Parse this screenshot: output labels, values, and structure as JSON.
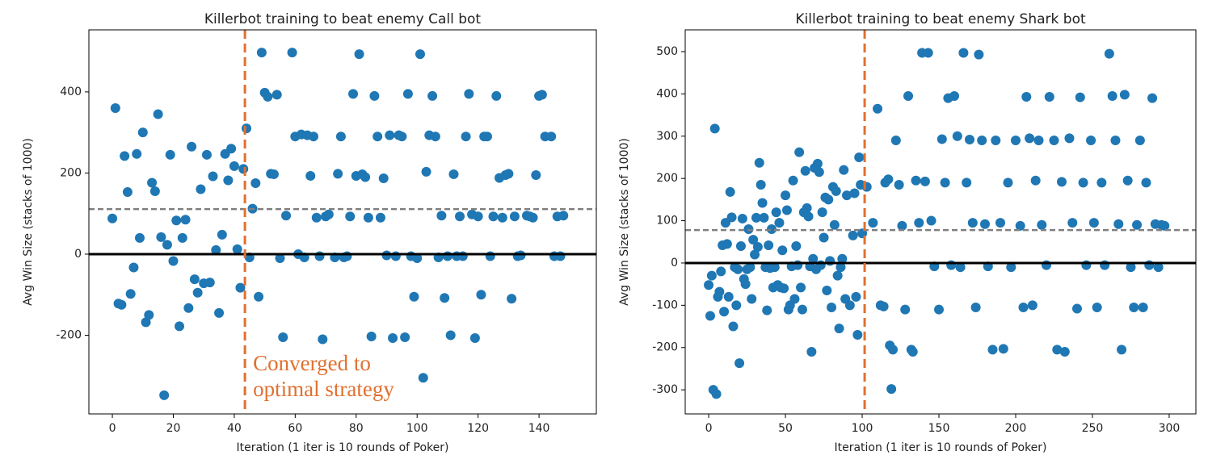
{
  "chart_data": [
    {
      "type": "scatter",
      "title": "Killerbot training to beat enemy Call bot",
      "x_label": "Iteration (1 iter is 10 rounds of Poker)",
      "y_label": "Avg Win Size (stacks of 1000)",
      "color": "#1f77b4",
      "xlim": [
        -7.7,
        158.8
      ],
      "ylim": [
        -394,
        553
      ],
      "xticks": [
        0,
        20,
        40,
        60,
        80,
        100,
        120,
        140
      ],
      "yticks": [
        -200,
        0,
        200,
        400
      ],
      "hlines": [
        {
          "y": 0,
          "color": "#000000",
          "style": "solid"
        },
        {
          "y": 111,
          "color": "#7f7f7f",
          "style": "dashed"
        }
      ],
      "vlines": [
        {
          "x": 43.5,
          "color": "#e07030",
          "style": "dashed"
        }
      ],
      "annotation": "Converged to optimal strategy",
      "annotation_color": "#e07030",
      "x": [
        0,
        1,
        2,
        3,
        4,
        5,
        6,
        7,
        8,
        9,
        10,
        11,
        12,
        13,
        14,
        15,
        16,
        17,
        18,
        19,
        20,
        21,
        22,
        23,
        24,
        25,
        26,
        27,
        28,
        29,
        30,
        31,
        32,
        33,
        34,
        35,
        36,
        37,
        38,
        39,
        40,
        41,
        42,
        43,
        44,
        45,
        46,
        47,
        48,
        49,
        50,
        51,
        52,
        53,
        54,
        55,
        56,
        57,
        59,
        60,
        61,
        62,
        63,
        64,
        65,
        66,
        67,
        68,
        69,
        70,
        71,
        73,
        74,
        75,
        76,
        77,
        78,
        79,
        80,
        81,
        82,
        83,
        84,
        85,
        86,
        87,
        88,
        89,
        90,
        91,
        92,
        93,
        94,
        95,
        96,
        97,
        98,
        99,
        100,
        101,
        102,
        103,
        104,
        105,
        106,
        107,
        108,
        109,
        110,
        111,
        112,
        113,
        114,
        115,
        116,
        117,
        118,
        119,
        120,
        121,
        122,
        123,
        124,
        125,
        126,
        127,
        128,
        129,
        130,
        131,
        132,
        133,
        134,
        136,
        137,
        138,
        139,
        140,
        141,
        142,
        144,
        145,
        146,
        147,
        148
      ],
      "values": [
        88,
        360,
        -122,
        -125,
        242,
        153,
        -98,
        -33,
        247,
        40,
        300,
        -168,
        -150,
        176,
        155,
        345,
        42,
        -348,
        23,
        245,
        -17,
        83,
        -178,
        40,
        85,
        -133,
        265,
        -62,
        -95,
        160,
        -72,
        245,
        -70,
        192,
        10,
        -145,
        48,
        247,
        182,
        260,
        217,
        12,
        -83,
        210,
        310,
        -8,
        112,
        175,
        -105,
        497,
        398,
        388,
        198,
        197,
        393,
        -10,
        -205,
        95,
        497,
        290,
        0,
        295,
        -8,
        293,
        193,
        290,
        90,
        -5,
        -210,
        93,
        98,
        -8,
        198,
        290,
        -8,
        -5,
        93,
        395,
        193,
        493,
        197,
        190,
        90,
        -203,
        390,
        290,
        90,
        187,
        -3,
        293,
        -207,
        -5,
        293,
        290,
        -205,
        395,
        -5,
        -105,
        -10,
        493,
        -305,
        203,
        293,
        390,
        290,
        -8,
        95,
        -108,
        -5,
        -200,
        197,
        -5,
        93,
        -5,
        290,
        395,
        98,
        -207,
        93,
        -100,
        290,
        290,
        -5,
        93,
        390,
        188,
        90,
        195,
        198,
        -110,
        93,
        -5,
        -3,
        95,
        93,
        90,
        195,
        390,
        393,
        290,
        290,
        -5,
        93,
        -5,
        95
      ]
    },
    {
      "type": "scatter",
      "title": "Killerbot training to beat enemy Shark bot",
      "x_label": "Iteration (1 iter is 10 rounds of Poker)",
      "y_label": "Avg Win Size (stacks of 1000)",
      "color": "#1f77b4",
      "xlim": [
        -15.3,
        317.4
      ],
      "ylim": [
        -357,
        551.5
      ],
      "xticks": [
        0,
        50,
        100,
        150,
        200,
        250,
        300
      ],
      "yticks": [
        -300,
        -200,
        -100,
        0,
        100,
        200,
        300,
        400,
        500
      ],
      "hlines": [
        {
          "y": 0,
          "color": "#000000",
          "style": "solid"
        },
        {
          "y": 78,
          "color": "#7f7f7f",
          "style": "dashed"
        }
      ],
      "vlines": [
        {
          "x": 101.6,
          "color": "#e07030",
          "style": "dashed"
        }
      ],
      "x": [
        0,
        1,
        2,
        3,
        4,
        5,
        6,
        7,
        8,
        9,
        10,
        11,
        12,
        13,
        14,
        15,
        16,
        17,
        18,
        19,
        20,
        21,
        22,
        23,
        24,
        25,
        26,
        27,
        28,
        29,
        30,
        31,
        32,
        33,
        34,
        35,
        36,
        37,
        38,
        39,
        40,
        41,
        42,
        43,
        44,
        45,
        46,
        47,
        48,
        49,
        50,
        51,
        52,
        53,
        54,
        55,
        56,
        57,
        58,
        59,
        60,
        61,
        62,
        63,
        64,
        65,
        66,
        67,
        68,
        69,
        70,
        71,
        72,
        73,
        74,
        75,
        76,
        77,
        78,
        79,
        80,
        81,
        82,
        83,
        84,
        85,
        86,
        87,
        88,
        89,
        90,
        92,
        94,
        95,
        96,
        97,
        98,
        99,
        100,
        103,
        107,
        110,
        112,
        114,
        115,
        117,
        118,
        119,
        120,
        122,
        124,
        126,
        128,
        130,
        132,
        133,
        135,
        137,
        139,
        141,
        143,
        145,
        147,
        150,
        152,
        154,
        156,
        158,
        160,
        162,
        164,
        166,
        168,
        170,
        172,
        174,
        176,
        178,
        180,
        182,
        185,
        187,
        190,
        192,
        195,
        197,
        200,
        203,
        205,
        207,
        209,
        211,
        213,
        215,
        217,
        220,
        222,
        225,
        227,
        230,
        232,
        235,
        237,
        240,
        242,
        244,
        246,
        249,
        251,
        253,
        256,
        258,
        261,
        263,
        265,
        267,
        269,
        271,
        273,
        275,
        277,
        279,
        281,
        283,
        285,
        287,
        289,
        291,
        293,
        295,
        297
      ],
      "values": [
        -52,
        -125,
        -30,
        -300,
        318,
        -310,
        -80,
        -68,
        -20,
        42,
        -115,
        95,
        45,
        -80,
        168,
        108,
        -150,
        -10,
        -100,
        -15,
        -237,
        40,
        105,
        -38,
        -50,
        -15,
        80,
        -10,
        -85,
        55,
        20,
        107,
        38,
        237,
        185,
        142,
        107,
        -10,
        -112,
        42,
        -12,
        80,
        -58,
        -10,
        120,
        -52,
        95,
        -58,
        30,
        -60,
        160,
        125,
        -110,
        -100,
        -8,
        195,
        -85,
        40,
        -5,
        262,
        -58,
        -110,
        120,
        218,
        130,
        110,
        -8,
        -210,
        10,
        225,
        -15,
        235,
        215,
        -5,
        120,
        60,
        155,
        -65,
        150,
        5,
        -105,
        180,
        90,
        170,
        -30,
        -155,
        -10,
        10,
        220,
        -85,
        160,
        -100,
        65,
        165,
        -80,
        -170,
        250,
        185,
        70,
        180,
        95,
        365,
        -100,
        -103,
        190,
        198,
        -195,
        -298,
        -205,
        290,
        185,
        88,
        -110,
        395,
        -205,
        -210,
        195,
        95,
        497,
        193,
        497,
        100,
        -8,
        -110,
        293,
        190,
        390,
        -5,
        395,
        300,
        -10,
        497,
        190,
        292,
        95,
        -105,
        493,
        290,
        92,
        -8,
        -205,
        290,
        95,
        -203,
        190,
        -10,
        290,
        88,
        -105,
        393,
        295,
        -100,
        195,
        290,
        90,
        -5,
        393,
        290,
        -205,
        192,
        -210,
        295,
        95,
        -108,
        392,
        190,
        -5,
        290,
        95,
        -105,
        190,
        -5,
        495,
        395,
        290,
        92,
        -205,
        398,
        195,
        -10,
        -105,
        90,
        290,
        -105,
        190,
        -5,
        390,
        92,
        -10,
        90,
        88
      ]
    }
  ]
}
